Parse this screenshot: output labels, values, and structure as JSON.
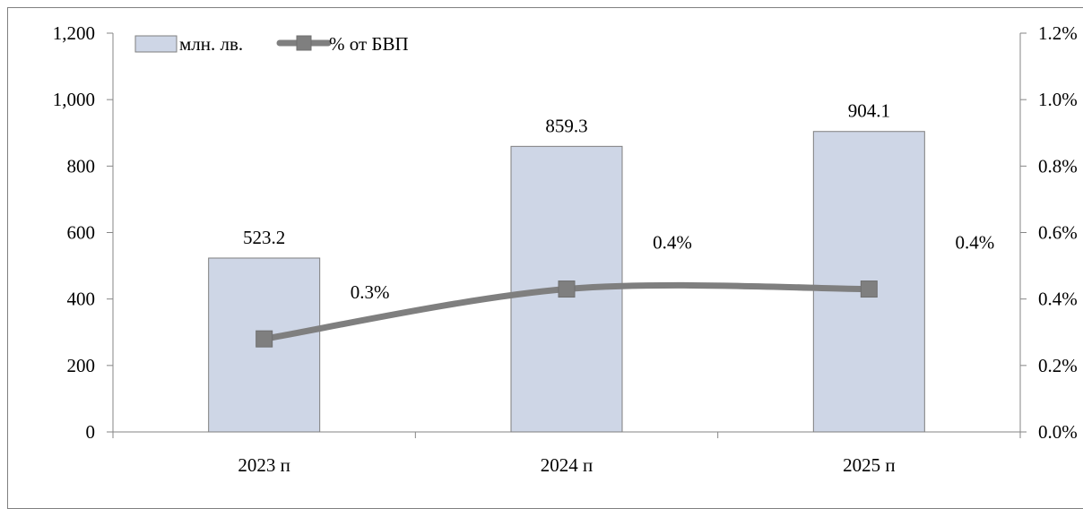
{
  "chart_data": {
    "type": "bar",
    "categories": [
      "2023 п",
      "2024 п",
      "2025 п"
    ],
    "series": [
      {
        "name": "млн. лв.",
        "type": "bar",
        "axis": "left",
        "values": [
          523.2,
          859.3,
          904.1
        ],
        "labels": [
          "523.2",
          "859.3",
          "904.1"
        ],
        "color": "#ced6e6"
      },
      {
        "name": "% от БВП",
        "type": "line",
        "axis": "right",
        "values": [
          0.28,
          0.43,
          0.43
        ],
        "labels": [
          "0.3%",
          "0.4%",
          "0.4%"
        ],
        "color": "#7f7f7f"
      }
    ],
    "y_left": {
      "min": 0,
      "max": 1200,
      "ticks": [
        "0",
        "200",
        "400",
        "600",
        "800",
        "1,000",
        "1,200"
      ]
    },
    "y_right": {
      "min": 0,
      "max": 1.2,
      "ticks": [
        "0.0%",
        "0.2%",
        "0.4%",
        "0.6%",
        "0.8%",
        "1.0%",
        "1.2%"
      ]
    },
    "grid": false,
    "legend_position": "top-left"
  }
}
